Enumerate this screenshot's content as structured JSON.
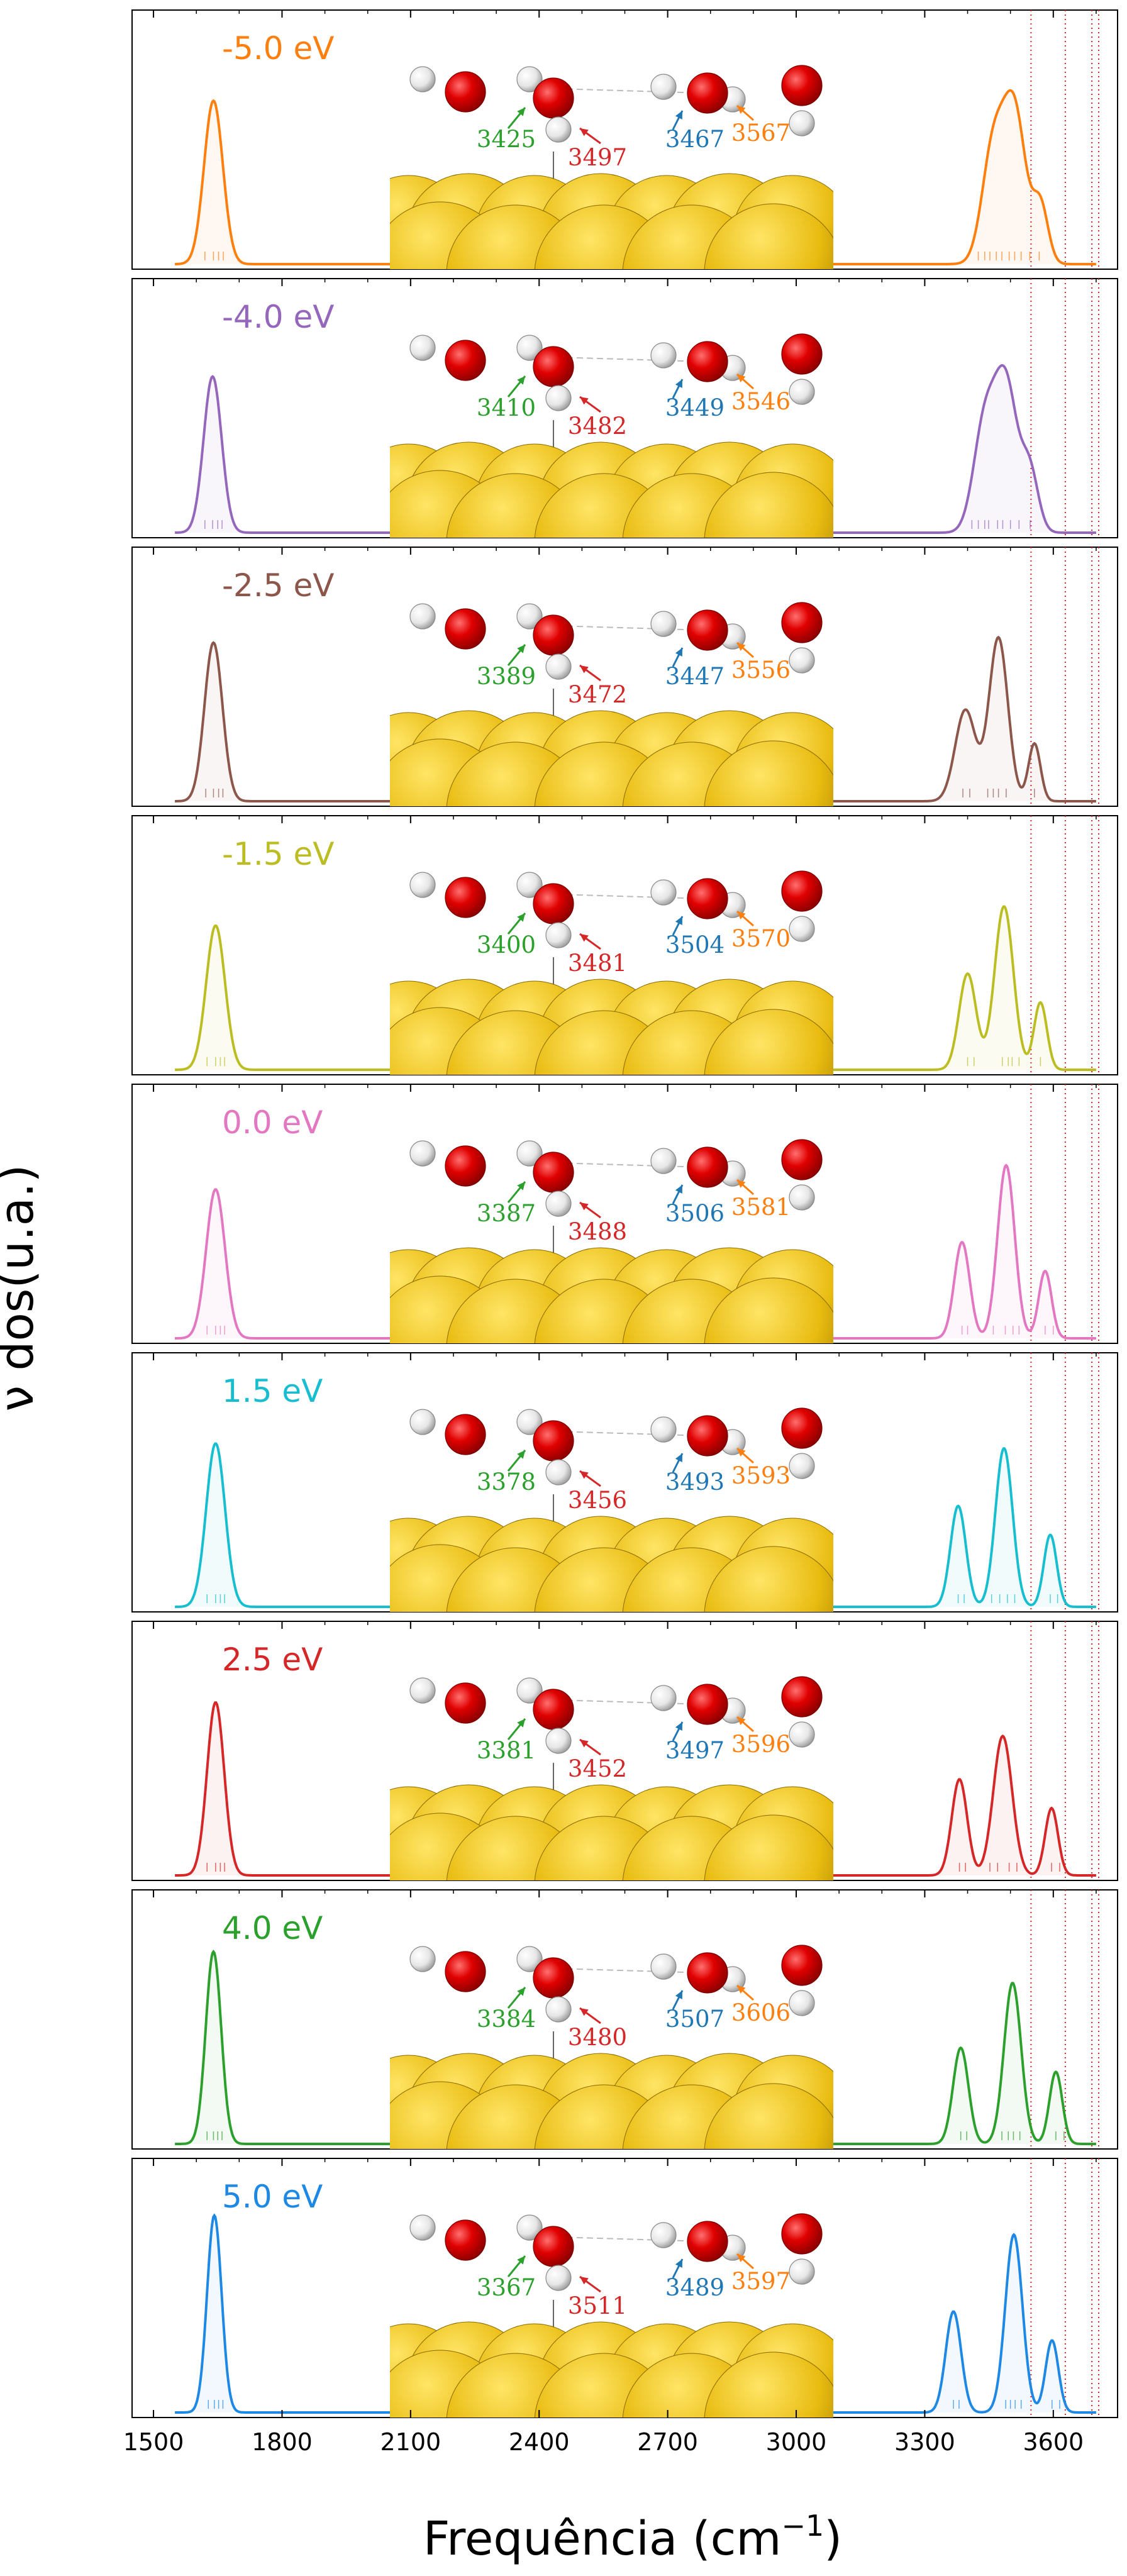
{
  "chart_data": {
    "type": "line",
    "xlabel": "Frequência (cm",
    "xlabel_superscript": "−1",
    "xlabel_close": ")",
    "ylabel": "ν dos(u.a.)",
    "xlim": [
      1450,
      3750
    ],
    "xticks": [
      1500,
      1800,
      2100,
      2400,
      2700,
      3000,
      3300,
      3600
    ],
    "reference_lines": [
      3548,
      3628,
      3690,
      3706
    ],
    "reference_line_color": "#d62728",
    "panels": [
      {
        "label": "-5.0 eV",
        "color": "#ff7f0e",
        "peaks": [
          {
            "x": 1640,
            "h": 0.68,
            "w": 22
          },
          {
            "x": 3460,
            "h": 0.48,
            "w": 26
          },
          {
            "x": 3510,
            "h": 0.62,
            "w": 26
          },
          {
            "x": 3570,
            "h": 0.24,
            "w": 18
          }
        ],
        "sticks": [
          1620,
          1640,
          1652,
          1663,
          3425,
          3440,
          3452,
          3467,
          3480,
          3497,
          3510,
          3525,
          3545,
          3567
        ],
        "freqs": [
          {
            "value": "3425",
            "color": "#2ca02c"
          },
          {
            "value": "3497",
            "color": "#d62728"
          },
          {
            "value": "3467",
            "color": "#1f77b4"
          },
          {
            "value": "3567",
            "color": "#ff7f0e"
          }
        ]
      },
      {
        "label": "-4.0 eV",
        "color": "#9467bd",
        "peaks": [
          {
            "x": 1638,
            "h": 0.65,
            "w": 21
          },
          {
            "x": 3440,
            "h": 0.45,
            "w": 26
          },
          {
            "x": 3490,
            "h": 0.6,
            "w": 26
          },
          {
            "x": 3545,
            "h": 0.25,
            "w": 20
          }
        ],
        "sticks": [
          1620,
          1638,
          1650,
          1660,
          3410,
          3425,
          3440,
          3449,
          3470,
          3482,
          3500,
          3520,
          3546
        ],
        "freqs": [
          {
            "value": "3410",
            "color": "#2ca02c"
          },
          {
            "value": "3482",
            "color": "#d62728"
          },
          {
            "value": "3449",
            "color": "#1f77b4"
          },
          {
            "value": "3546",
            "color": "#ff7f0e"
          }
        ]
      },
      {
        "label": "-2.5 eV",
        "color": "#8c564b",
        "peaks": [
          {
            "x": 1640,
            "h": 0.66,
            "w": 21
          },
          {
            "x": 3395,
            "h": 0.38,
            "w": 24
          },
          {
            "x": 3472,
            "h": 0.68,
            "w": 22
          },
          {
            "x": 3556,
            "h": 0.24,
            "w": 14
          }
        ],
        "sticks": [
          1622,
          1640,
          1652,
          1662,
          3389,
          3405,
          3447,
          3460,
          3472,
          3490,
          3556
        ],
        "freqs": [
          {
            "value": "3389",
            "color": "#2ca02c"
          },
          {
            "value": "3472",
            "color": "#d62728"
          },
          {
            "value": "3447",
            "color": "#1f77b4"
          },
          {
            "value": "3556",
            "color": "#ff7f0e"
          }
        ]
      },
      {
        "label": "-1.5 eV",
        "color": "#bcbd22",
        "peaks": [
          {
            "x": 1645,
            "h": 0.6,
            "w": 22
          },
          {
            "x": 3400,
            "h": 0.4,
            "w": 20
          },
          {
            "x": 3485,
            "h": 0.68,
            "w": 22
          },
          {
            "x": 3570,
            "h": 0.28,
            "w": 15
          }
        ],
        "sticks": [
          1625,
          1645,
          1656,
          1666,
          3400,
          3415,
          3481,
          3495,
          3504,
          3520,
          3570
        ],
        "freqs": [
          {
            "value": "3400",
            "color": "#2ca02c"
          },
          {
            "value": "3481",
            "color": "#d62728"
          },
          {
            "value": "3504",
            "color": "#1f77b4"
          },
          {
            "value": "3570",
            "color": "#ff7f0e"
          }
        ]
      },
      {
        "label": "0.0 eV",
        "color": "#e377c2",
        "peaks": [
          {
            "x": 1645,
            "h": 0.62,
            "w": 22
          },
          {
            "x": 3387,
            "h": 0.4,
            "w": 18
          },
          {
            "x": 3490,
            "h": 0.72,
            "w": 20
          },
          {
            "x": 3581,
            "h": 0.28,
            "w": 15
          }
        ],
        "sticks": [
          1625,
          1645,
          1656,
          1666,
          3387,
          3400,
          3460,
          3488,
          3506,
          3520,
          3581,
          3600
        ],
        "freqs": [
          {
            "value": "3387",
            "color": "#2ca02c"
          },
          {
            "value": "3488",
            "color": "#d62728"
          },
          {
            "value": "3506",
            "color": "#1f77b4"
          },
          {
            "value": "3581",
            "color": "#ff7f0e"
          }
        ]
      },
      {
        "label": "1.5 eV",
        "color": "#17becf",
        "peaks": [
          {
            "x": 1645,
            "h": 0.68,
            "w": 22
          },
          {
            "x": 3378,
            "h": 0.42,
            "w": 18
          },
          {
            "x": 3485,
            "h": 0.66,
            "w": 20
          },
          {
            "x": 3593,
            "h": 0.3,
            "w": 15
          }
        ],
        "sticks": [
          1625,
          1645,
          1656,
          1666,
          3378,
          3392,
          3456,
          3475,
          3493,
          3510,
          3593,
          3610
        ],
        "freqs": [
          {
            "value": "3378",
            "color": "#2ca02c"
          },
          {
            "value": "3456",
            "color": "#d62728"
          },
          {
            "value": "3493",
            "color": "#1f77b4"
          },
          {
            "value": "3593",
            "color": "#ff7f0e"
          }
        ]
      },
      {
        "label": "2.5 eV",
        "color": "#d62728",
        "peaks": [
          {
            "x": 1645,
            "h": 0.72,
            "w": 20
          },
          {
            "x": 3381,
            "h": 0.4,
            "w": 18
          },
          {
            "x": 3482,
            "h": 0.58,
            "w": 22
          },
          {
            "x": 3596,
            "h": 0.28,
            "w": 15
          }
        ],
        "sticks": [
          1625,
          1645,
          1656,
          1666,
          3381,
          3395,
          3452,
          3470,
          3497,
          3515,
          3596,
          3615
        ],
        "freqs": [
          {
            "value": "3381",
            "color": "#2ca02c"
          },
          {
            "value": "3452",
            "color": "#d62728"
          },
          {
            "value": "3497",
            "color": "#1f77b4"
          },
          {
            "value": "3596",
            "color": "#ff7f0e"
          }
        ]
      },
      {
        "label": "4.0 eV",
        "color": "#2ca02c",
        "peaks": [
          {
            "x": 1640,
            "h": 0.8,
            "w": 18
          },
          {
            "x": 3384,
            "h": 0.4,
            "w": 18
          },
          {
            "x": 3505,
            "h": 0.67,
            "w": 20
          },
          {
            "x": 3606,
            "h": 0.3,
            "w": 15
          }
        ],
        "sticks": [
          1625,
          1640,
          1650,
          1660,
          3384,
          3398,
          3480,
          3495,
          3507,
          3522,
          3606,
          3625
        ],
        "freqs": [
          {
            "value": "3384",
            "color": "#2ca02c"
          },
          {
            "value": "3480",
            "color": "#d62728"
          },
          {
            "value": "3507",
            "color": "#1f77b4"
          },
          {
            "value": "3606",
            "color": "#ff7f0e"
          }
        ]
      },
      {
        "label": "5.0 eV",
        "color": "#1e88e5",
        "peaks": [
          {
            "x": 1642,
            "h": 0.82,
            "w": 17
          },
          {
            "x": 3367,
            "h": 0.42,
            "w": 18
          },
          {
            "x": 3508,
            "h": 0.74,
            "w": 20
          },
          {
            "x": 3597,
            "h": 0.3,
            "w": 15
          }
        ],
        "sticks": [
          1628,
          1642,
          1652,
          1662,
          3367,
          3380,
          3489,
          3500,
          3511,
          3525,
          3597,
          3615
        ],
        "freqs": [
          {
            "value": "3367",
            "color": "#2ca02c"
          },
          {
            "value": "3511",
            "color": "#d62728"
          },
          {
            "value": "3489",
            "color": "#1f77b4"
          },
          {
            "value": "3597",
            "color": "#ff7f0e"
          }
        ]
      }
    ]
  }
}
